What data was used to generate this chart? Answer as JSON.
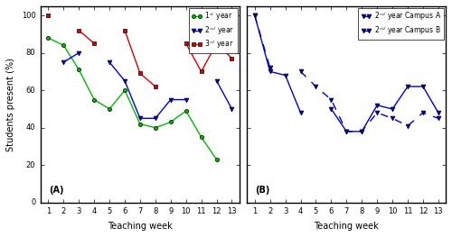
{
  "weeks": [
    1,
    2,
    3,
    4,
    5,
    6,
    7,
    8,
    9,
    10,
    11,
    12,
    13
  ],
  "year1": [
    88,
    84,
    71,
    55,
    50,
    60,
    42,
    40,
    43,
    49,
    35,
    23,
    null
  ],
  "year2": [
    null,
    75,
    80,
    null,
    75,
    65,
    45,
    45,
    55,
    55,
    null,
    65,
    50
  ],
  "year3": [
    100,
    null,
    92,
    85,
    null,
    92,
    69,
    62,
    null,
    85,
    70,
    85,
    77
  ],
  "campus_A": [
    100,
    72,
    null,
    70,
    62,
    55,
    38,
    38,
    48,
    45,
    41,
    48,
    45
  ],
  "campus_B": [
    100,
    70,
    68,
    48,
    null,
    50,
    38,
    38,
    52,
    50,
    62,
    62,
    48
  ],
  "panel_a_title": "(A)",
  "panel_b_title": "(B)",
  "xlabel": "Teaching week",
  "ylabel": "Students present (%)",
  "ylim": [
    0,
    105
  ],
  "color_year1": "#00bb00",
  "color_year2": "#0000dd",
  "color_year3": "#dd0000",
  "color_campus": "#0000cc",
  "legend_a": [
    "1$^{st}$ year",
    "2$^{nd}$ year",
    "3$^{rd}$ year"
  ],
  "legend_b": [
    "2$^{nd}$ year Campus A",
    "2$^{nd}$ year Campus B"
  ],
  "yticks": [
    0,
    20,
    40,
    60,
    80,
    100
  ],
  "xticks": [
    1,
    2,
    3,
    4,
    5,
    6,
    7,
    8,
    9,
    10,
    11,
    12,
    13
  ]
}
